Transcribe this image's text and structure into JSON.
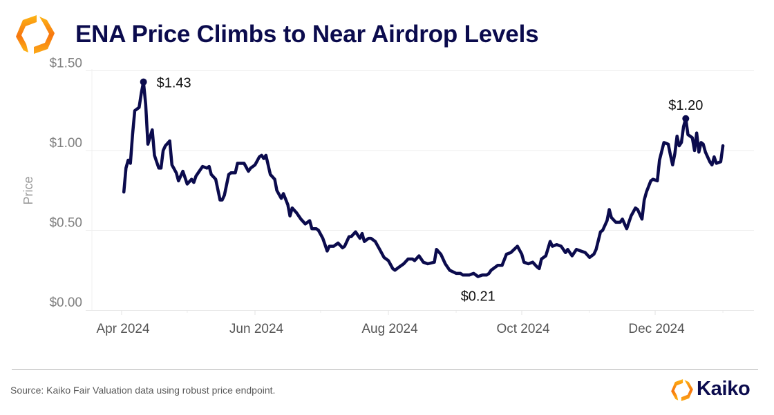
{
  "header": {
    "title": "ENA Price Climbs to Near Airdrop Levels",
    "logo_icon": "kaiko-hexagon-logo-icon"
  },
  "footer": {
    "source": "Source: Kaiko Fair Valuation data using robust price endpoint.",
    "brand_name": "Kaiko",
    "brand_icon": "kaiko-hexagon-logo-icon"
  },
  "colors": {
    "line": "#0b0b4d",
    "title": "#0b0b4d",
    "logo_light": "#fdb515",
    "logo_dark": "#f7760f",
    "gridline": "#ececec",
    "tick_label": "#808080"
  },
  "chart_data": {
    "type": "line",
    "title": "ENA Price Climbs to Near Airdrop Levels",
    "xlabel": "",
    "ylabel": "Price",
    "ylim": [
      0,
      1.5
    ],
    "xlim": [
      "2024-03-27",
      "2025-01-14"
    ],
    "grid": true,
    "legend": "none",
    "y_ticks": [
      {
        "value": 0,
        "label": "$0.00"
      },
      {
        "value": 0.5,
        "label": "$0.50"
      },
      {
        "value": 1.0,
        "label": "$1.00"
      },
      {
        "value": 1.5,
        "label": "$1.50"
      }
    ],
    "x_ticks": [
      {
        "date": "2024-04-01",
        "label": "Apr 2024"
      },
      {
        "date": "2024-06-01",
        "label": "Jun 2024"
      },
      {
        "date": "2024-08-01",
        "label": "Aug 2024"
      },
      {
        "date": "2024-10-01",
        "label": "Oct 2024"
      },
      {
        "date": "2024-12-01",
        "label": "Dec 2024"
      }
    ],
    "x_minor_ticks": [
      "2024-05-01",
      "2024-07-01",
      "2024-09-01",
      "2024-11-01",
      "2025-01-01"
    ],
    "annotations": [
      {
        "date": "2024-04-11",
        "value": 1.43,
        "label": "$1.43",
        "marker": true,
        "position": "right"
      },
      {
        "date": "2024-09-11",
        "value": 0.21,
        "label": "$0.21",
        "marker": false,
        "position": "below"
      },
      {
        "date": "2024-12-15",
        "value": 1.2,
        "label": "$1.20",
        "marker": true,
        "position": "above"
      }
    ],
    "series": [
      {
        "name": "ENA Price",
        "points": [
          [
            "2024-04-02",
            0.74
          ],
          [
            "2024-04-03",
            0.89
          ],
          [
            "2024-04-04",
            0.94
          ],
          [
            "2024-04-05",
            0.92
          ],
          [
            "2024-04-06",
            1.1
          ],
          [
            "2024-04-07",
            1.25
          ],
          [
            "2024-04-09",
            1.27
          ],
          [
            "2024-04-10",
            1.36
          ],
          [
            "2024-04-11",
            1.43
          ],
          [
            "2024-04-12",
            1.29
          ],
          [
            "2024-04-13",
            1.04
          ],
          [
            "2024-04-15",
            1.13
          ],
          [
            "2024-04-16",
            0.97
          ],
          [
            "2024-04-17",
            0.93
          ],
          [
            "2024-04-18",
            0.89
          ],
          [
            "2024-04-19",
            0.89
          ],
          [
            "2024-04-20",
            1.0
          ],
          [
            "2024-04-21",
            1.03
          ],
          [
            "2024-04-23",
            1.06
          ],
          [
            "2024-04-24",
            0.91
          ],
          [
            "2024-04-26",
            0.86
          ],
          [
            "2024-04-27",
            0.81
          ],
          [
            "2024-04-29",
            0.87
          ],
          [
            "2024-05-01",
            0.79
          ],
          [
            "2024-05-03",
            0.82
          ],
          [
            "2024-05-04",
            0.8
          ],
          [
            "2024-05-05",
            0.84
          ],
          [
            "2024-05-07",
            0.88
          ],
          [
            "2024-05-08",
            0.9
          ],
          [
            "2024-05-10",
            0.89
          ],
          [
            "2024-05-11",
            0.9
          ],
          [
            "2024-05-12",
            0.85
          ],
          [
            "2024-05-14",
            0.82
          ],
          [
            "2024-05-16",
            0.69
          ],
          [
            "2024-05-17",
            0.69
          ],
          [
            "2024-05-18",
            0.72
          ],
          [
            "2024-05-20",
            0.85
          ],
          [
            "2024-05-21",
            0.86
          ],
          [
            "2024-05-23",
            0.86
          ],
          [
            "2024-05-24",
            0.92
          ],
          [
            "2024-05-27",
            0.92
          ],
          [
            "2024-05-29",
            0.87
          ],
          [
            "2024-05-30",
            0.89
          ],
          [
            "2024-06-01",
            0.91
          ],
          [
            "2024-06-03",
            0.96
          ],
          [
            "2024-06-04",
            0.97
          ],
          [
            "2024-06-05",
            0.95
          ],
          [
            "2024-06-06",
            0.97
          ],
          [
            "2024-06-08",
            0.85
          ],
          [
            "2024-06-10",
            0.82
          ],
          [
            "2024-06-11",
            0.75
          ],
          [
            "2024-06-13",
            0.7
          ],
          [
            "2024-06-14",
            0.73
          ],
          [
            "2024-06-16",
            0.66
          ],
          [
            "2024-06-17",
            0.59
          ],
          [
            "2024-06-18",
            0.64
          ],
          [
            "2024-06-20",
            0.61
          ],
          [
            "2024-06-22",
            0.57
          ],
          [
            "2024-06-24",
            0.54
          ],
          [
            "2024-06-26",
            0.56
          ],
          [
            "2024-06-27",
            0.51
          ],
          [
            "2024-06-29",
            0.51
          ],
          [
            "2024-06-30",
            0.5
          ],
          [
            "2024-07-02",
            0.45
          ],
          [
            "2024-07-03",
            0.41
          ],
          [
            "2024-07-04",
            0.37
          ],
          [
            "2024-07-05",
            0.4
          ],
          [
            "2024-07-07",
            0.4
          ],
          [
            "2024-07-09",
            0.42
          ],
          [
            "2024-07-11",
            0.39
          ],
          [
            "2024-07-12",
            0.4
          ],
          [
            "2024-07-14",
            0.46
          ],
          [
            "2024-07-15",
            0.46
          ],
          [
            "2024-07-17",
            0.49
          ],
          [
            "2024-07-19",
            0.45
          ],
          [
            "2024-07-20",
            0.48
          ],
          [
            "2024-07-21",
            0.43
          ],
          [
            "2024-07-23",
            0.45
          ],
          [
            "2024-07-24",
            0.45
          ],
          [
            "2024-07-26",
            0.43
          ],
          [
            "2024-07-28",
            0.38
          ],
          [
            "2024-07-30",
            0.33
          ],
          [
            "2024-08-01",
            0.31
          ],
          [
            "2024-08-03",
            0.26
          ],
          [
            "2024-08-04",
            0.25
          ],
          [
            "2024-08-06",
            0.27
          ],
          [
            "2024-08-08",
            0.29
          ],
          [
            "2024-08-10",
            0.32
          ],
          [
            "2024-08-12",
            0.32
          ],
          [
            "2024-08-13",
            0.31
          ],
          [
            "2024-08-15",
            0.34
          ],
          [
            "2024-08-17",
            0.3
          ],
          [
            "2024-08-19",
            0.29
          ],
          [
            "2024-08-22",
            0.3
          ],
          [
            "2024-08-23",
            0.38
          ],
          [
            "2024-08-25",
            0.35
          ],
          [
            "2024-08-27",
            0.29
          ],
          [
            "2024-08-29",
            0.25
          ],
          [
            "2024-09-01",
            0.23
          ],
          [
            "2024-09-03",
            0.23
          ],
          [
            "2024-09-04",
            0.22
          ],
          [
            "2024-09-07",
            0.22
          ],
          [
            "2024-09-09",
            0.23
          ],
          [
            "2024-09-11",
            0.21
          ],
          [
            "2024-09-13",
            0.22
          ],
          [
            "2024-09-15",
            0.22
          ],
          [
            "2024-09-16",
            0.23
          ],
          [
            "2024-09-17",
            0.25
          ],
          [
            "2024-09-20",
            0.28
          ],
          [
            "2024-09-22",
            0.28
          ],
          [
            "2024-09-24",
            0.35
          ],
          [
            "2024-09-26",
            0.36
          ],
          [
            "2024-09-29",
            0.4
          ],
          [
            "2024-10-01",
            0.35
          ],
          [
            "2024-10-02",
            0.3
          ],
          [
            "2024-10-04",
            0.29
          ],
          [
            "2024-10-06",
            0.3
          ],
          [
            "2024-10-08",
            0.27
          ],
          [
            "2024-10-09",
            0.26
          ],
          [
            "2024-10-10",
            0.32
          ],
          [
            "2024-10-12",
            0.34
          ],
          [
            "2024-10-14",
            0.43
          ],
          [
            "2024-10-15",
            0.4
          ],
          [
            "2024-10-17",
            0.41
          ],
          [
            "2024-10-19",
            0.4
          ],
          [
            "2024-10-21",
            0.36
          ],
          [
            "2024-10-22",
            0.38
          ],
          [
            "2024-10-24",
            0.34
          ],
          [
            "2024-10-26",
            0.38
          ],
          [
            "2024-10-28",
            0.37
          ],
          [
            "2024-10-30",
            0.36
          ],
          [
            "2024-11-01",
            0.33
          ],
          [
            "2024-11-03",
            0.35
          ],
          [
            "2024-11-04",
            0.38
          ],
          [
            "2024-11-06",
            0.49
          ],
          [
            "2024-11-07",
            0.5
          ],
          [
            "2024-11-09",
            0.56
          ],
          [
            "2024-11-10",
            0.63
          ],
          [
            "2024-11-11",
            0.58
          ],
          [
            "2024-11-13",
            0.55
          ],
          [
            "2024-11-15",
            0.55
          ],
          [
            "2024-11-16",
            0.57
          ],
          [
            "2024-11-18",
            0.51
          ],
          [
            "2024-11-20",
            0.59
          ],
          [
            "2024-11-22",
            0.64
          ],
          [
            "2024-11-23",
            0.63
          ],
          [
            "2024-11-25",
            0.57
          ],
          [
            "2024-11-26",
            0.69
          ],
          [
            "2024-11-27",
            0.74
          ],
          [
            "2024-11-29",
            0.81
          ],
          [
            "2024-11-30",
            0.82
          ],
          [
            "2024-12-02",
            0.81
          ],
          [
            "2024-12-03",
            0.94
          ],
          [
            "2024-12-05",
            1.05
          ],
          [
            "2024-12-07",
            1.04
          ],
          [
            "2024-12-08",
            0.97
          ],
          [
            "2024-12-09",
            0.91
          ],
          [
            "2024-12-10",
            0.98
          ],
          [
            "2024-12-11",
            1.09
          ],
          [
            "2024-12-12",
            1.03
          ],
          [
            "2024-12-13",
            1.05
          ],
          [
            "2024-12-14",
            1.15
          ],
          [
            "2024-12-15",
            1.2
          ],
          [
            "2024-12-16",
            1.1
          ],
          [
            "2024-12-18",
            1.08
          ],
          [
            "2024-12-19",
            1.0
          ],
          [
            "2024-12-20",
            1.11
          ],
          [
            "2024-12-21",
            0.99
          ],
          [
            "2024-12-22",
            1.05
          ],
          [
            "2024-12-23",
            1.04
          ],
          [
            "2024-12-24",
            0.99
          ],
          [
            "2024-12-26",
            0.93
          ],
          [
            "2024-12-27",
            0.91
          ],
          [
            "2024-12-28",
            0.96
          ],
          [
            "2024-12-29",
            0.92
          ],
          [
            "2024-12-31",
            0.93
          ],
          [
            "2025-01-01",
            1.03
          ]
        ]
      }
    ]
  }
}
